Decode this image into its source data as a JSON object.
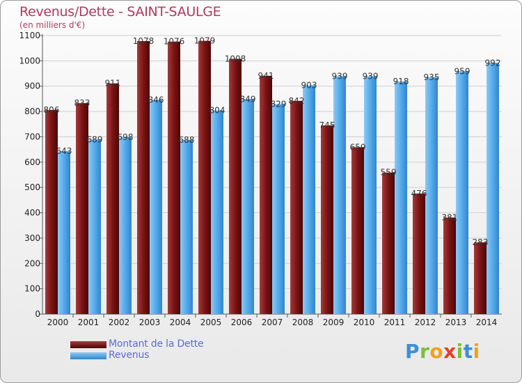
{
  "header": {
    "title": "Revenus/Dette - SAINT-SAULGE",
    "subtitle": "(en milliers d'€)"
  },
  "legend": {
    "items": [
      {
        "label": "Montant de la Dette",
        "color": "#6b0d0d"
      },
      {
        "label": "Revenus",
        "color": "#4aa3e6"
      }
    ]
  },
  "logo": {
    "letters": [
      {
        "char": "P",
        "color": "#3a8fd8"
      },
      {
        "char": "r",
        "color": "#7bbf3a"
      },
      {
        "char": "o",
        "color": "#f0a21c"
      },
      {
        "char": "x",
        "color": "#e2402a"
      },
      {
        "char": "i",
        "color": "#7bbf3a"
      },
      {
        "char": "t",
        "color": "#3a8fd8"
      },
      {
        "char": "i",
        "color": "#f0a21c"
      }
    ]
  },
  "chart_data": {
    "type": "bar",
    "title": "Revenus/Dette - SAINT-SAULGE",
    "subtitle": "(en milliers d'€)",
    "categories": [
      "2000",
      "2001",
      "2002",
      "2003",
      "2004",
      "2005",
      "2006",
      "2007",
      "2008",
      "2009",
      "2010",
      "2011",
      "2012",
      "2013",
      "2014"
    ],
    "series": [
      {
        "name": "Montant de la Dette",
        "color": "#6b0d0d",
        "values": [
          806,
          833,
          911,
          1078,
          1076,
          1079,
          1008,
          941,
          842,
          745,
          659,
          559,
          476,
          381,
          283
        ]
      },
      {
        "name": "Revenus",
        "color": "#4aa3e6",
        "values": [
          643,
          689,
          698,
          846,
          688,
          804,
          849,
          829,
          903,
          939,
          939,
          918,
          935,
          959,
          992
        ]
      }
    ],
    "ylim": [
      0,
      1100
    ],
    "yticks": [
      0,
      100,
      200,
      300,
      400,
      500,
      600,
      700,
      800,
      900,
      1000,
      1100
    ],
    "grid": true,
    "legend_position": "bottom-left"
  }
}
